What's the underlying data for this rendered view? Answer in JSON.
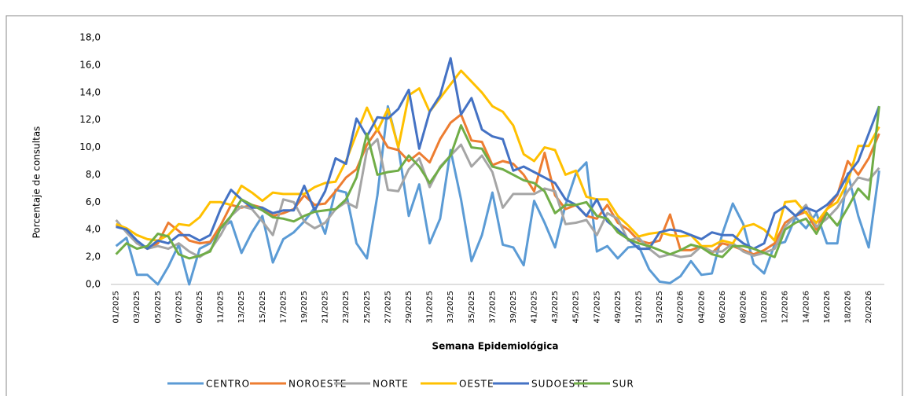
{
  "chart_data": {
    "type": "line",
    "x_label": "Semana Epidemiológica",
    "y_label": "Porcentaje de consultas",
    "ylim": [
      0,
      18
    ],
    "yticks": [
      {
        "value": 0,
        "label": "0,0"
      },
      {
        "value": 2,
        "label": "2,0"
      },
      {
        "value": 4,
        "label": "4,0"
      },
      {
        "value": 6,
        "label": "6,0"
      },
      {
        "value": 8,
        "label": "8,0"
      },
      {
        "value": 10,
        "label": "10,0"
      },
      {
        "value": 12,
        "label": "12,0"
      },
      {
        "value": 14,
        "label": "14,0"
      },
      {
        "value": 16,
        "label": "16,0"
      },
      {
        "value": 18,
        "label": "18,0"
      }
    ],
    "grid": false,
    "legend": "bottom",
    "categories": [
      "01/2025",
      null,
      "03/2025",
      null,
      "05/2025",
      null,
      "07/2025",
      null,
      "09/2025",
      null,
      "11/2025",
      null,
      "13/2025",
      null,
      "15/2025",
      null,
      "17/2025",
      null,
      "19/2025",
      null,
      "21/2025",
      null,
      "23/2025",
      null,
      "25/2025",
      null,
      "27/2025",
      null,
      "29/2025",
      null,
      "31/2025",
      null,
      "33/2025",
      null,
      "35/2025",
      null,
      "37/2025",
      null,
      "39/2025",
      null,
      "41/2025",
      null,
      "43/2025",
      null,
      "45/2025",
      null,
      "47/2025",
      null,
      "49/2025",
      null,
      "51/2025",
      null,
      "53/2025",
      null,
      "02/2026",
      null,
      "04/2026",
      null,
      "06/2026",
      null,
      "08/2026",
      null,
      "10/2026",
      null,
      "12/2026",
      null,
      "14/2026",
      null,
      "16/2026",
      null,
      "18/2026",
      null,
      "20/2026",
      null
    ],
    "series": [
      {
        "name": "CENTRO",
        "color": "#5b9bd5",
        "values": [
          2.8,
          3.4,
          0.7,
          0.7,
          0.0,
          1.3,
          2.9,
          0.0,
          2.6,
          3.0,
          4.1,
          4.6,
          2.3,
          3.8,
          5.0,
          1.6,
          3.3,
          3.8,
          4.6,
          5.6,
          3.7,
          6.9,
          6.7,
          3.0,
          1.9,
          6.5,
          13.0,
          10.0,
          5.0,
          7.3,
          3.0,
          4.8,
          9.8,
          6.2,
          1.7,
          3.6,
          6.7,
          2.9,
          2.7,
          1.4,
          6.1,
          4.5,
          2.7,
          5.8,
          8.1,
          8.9,
          2.4,
          2.8,
          1.9,
          2.7,
          2.8,
          1.1,
          0.2,
          0.1,
          0.6,
          1.7,
          0.7,
          0.8,
          3.7,
          5.9,
          4.4,
          1.5,
          0.8,
          2.9,
          3.1,
          4.9,
          4.1,
          5.2,
          3.0,
          3.0,
          8.1,
          5.0,
          2.7,
          8.3
        ]
      },
      {
        "name": "NOROESTE",
        "color": "#ed7d31",
        "values": [
          4.3,
          4.0,
          3.0,
          2.6,
          3.0,
          4.5,
          3.9,
          3.2,
          3.0,
          3.1,
          4.3,
          5.8,
          5.6,
          5.8,
          5.6,
          5.0,
          5.2,
          5.5,
          6.5,
          5.8,
          5.9,
          6.8,
          7.8,
          8.4,
          10.2,
          11.3,
          10.0,
          9.8,
          9.0,
          9.6,
          8.9,
          10.6,
          11.8,
          12.4,
          10.5,
          10.4,
          8.7,
          9.0,
          8.8,
          8.0,
          6.8,
          9.6,
          6.5,
          5.5,
          5.8,
          5.0,
          4.8,
          5.8,
          4.5,
          4.0,
          3.2,
          3.0,
          3.2,
          5.1,
          2.5,
          2.5,
          2.8,
          2.3,
          3.0,
          2.8,
          2.5,
          2.2,
          2.5,
          3.0,
          4.5,
          5.0,
          5.3,
          4.0,
          5.5,
          6.5,
          9.0,
          8.0,
          9.2,
          11.0
        ]
      },
      {
        "name": "NORTE",
        "color": "#a5a5a5",
        "values": [
          4.7,
          3.8,
          3.0,
          2.6,
          2.8,
          2.6,
          3.0,
          2.4,
          2.0,
          2.5,
          3.6,
          5.0,
          5.7,
          5.5,
          4.6,
          3.6,
          6.2,
          6.0,
          4.6,
          4.1,
          4.5,
          5.5,
          6.0,
          5.6,
          9.8,
          10.6,
          6.9,
          6.8,
          8.4,
          9.2,
          7.1,
          8.6,
          9.4,
          10.2,
          8.6,
          9.4,
          8.2,
          5.6,
          6.6,
          6.6,
          6.6,
          7.0,
          6.8,
          4.4,
          4.5,
          4.7,
          3.6,
          5.2,
          4.8,
          3.2,
          3.4,
          2.6,
          2.0,
          2.2,
          2.0,
          2.1,
          2.8,
          2.4,
          2.4,
          3.0,
          2.4,
          2.1,
          2.3,
          2.6,
          4.2,
          5.0,
          5.8,
          4.2,
          4.8,
          5.6,
          6.8,
          7.8,
          7.6,
          8.5
        ]
      },
      {
        "name": "OESTE",
        "color": "#ffc000",
        "values": [
          4.4,
          4.1,
          3.6,
          3.3,
          3.2,
          3.6,
          4.4,
          4.3,
          4.9,
          6.0,
          6.0,
          5.8,
          7.2,
          6.7,
          6.1,
          6.7,
          6.6,
          6.6,
          6.6,
          7.1,
          7.4,
          7.5,
          9.0,
          11.0,
          12.9,
          11.2,
          12.8,
          10.0,
          13.8,
          14.3,
          12.6,
          13.6,
          14.6,
          15.6,
          14.8,
          14.0,
          13.0,
          12.6,
          11.6,
          9.5,
          9.0,
          10.0,
          9.8,
          8.0,
          8.3,
          6.4,
          6.2,
          6.2,
          5.0,
          4.3,
          3.5,
          3.7,
          3.8,
          3.6,
          3.5,
          3.6,
          2.8,
          2.8,
          3.2,
          3.0,
          4.2,
          4.4,
          4.0,
          3.2,
          6.0,
          6.1,
          5.2,
          4.5,
          5.5,
          6.0,
          7.5,
          10.1,
          10.1,
          11.5
        ]
      },
      {
        "name": "SUDOESTE",
        "color": "#4472c4",
        "values": [
          4.2,
          4.0,
          3.2,
          2.6,
          3.2,
          3.0,
          3.6,
          3.6,
          3.2,
          3.6,
          5.5,
          6.9,
          6.2,
          5.6,
          5.6,
          5.2,
          5.4,
          5.4,
          7.2,
          5.4,
          6.8,
          9.2,
          8.8,
          12.1,
          10.8,
          12.2,
          12.1,
          12.8,
          14.2,
          9.9,
          12.6,
          13.8,
          16.5,
          12.4,
          13.6,
          11.3,
          10.8,
          10.6,
          8.3,
          8.6,
          8.2,
          7.8,
          7.4,
          6.2,
          5.8,
          5.0,
          6.2,
          4.6,
          4.0,
          3.3,
          2.6,
          2.6,
          3.8,
          4.0,
          3.9,
          3.6,
          3.3,
          3.8,
          3.6,
          3.6,
          3.0,
          2.6,
          3.0,
          5.2,
          5.7,
          5.0,
          5.6,
          5.3,
          5.8,
          6.6,
          8.0,
          9.0,
          11.0,
          13.0
        ]
      },
      {
        "name": "SUR",
        "color": "#70ad47",
        "values": [
          2.2,
          3.0,
          2.6,
          2.8,
          3.7,
          3.5,
          2.2,
          1.9,
          2.1,
          2.4,
          4.1,
          5.0,
          6.2,
          5.8,
          5.4,
          4.9,
          4.8,
          4.6,
          5.0,
          5.3,
          5.4,
          5.5,
          6.2,
          7.8,
          11.0,
          8.0,
          8.2,
          8.3,
          9.4,
          8.6,
          7.4,
          8.5,
          9.4,
          11.6,
          10.0,
          9.9,
          8.6,
          8.4,
          8.0,
          7.6,
          7.4,
          6.8,
          5.2,
          5.8,
          5.8,
          6.0,
          5.0,
          4.8,
          3.8,
          3.3,
          3.0,
          2.8,
          2.5,
          2.2,
          2.5,
          2.9,
          2.7,
          2.2,
          2.0,
          2.8,
          2.8,
          2.6,
          2.3,
          2.0,
          4.0,
          4.5,
          4.8,
          3.7,
          5.2,
          4.3,
          5.6,
          7.0,
          6.2,
          13.0
        ]
      }
    ]
  }
}
